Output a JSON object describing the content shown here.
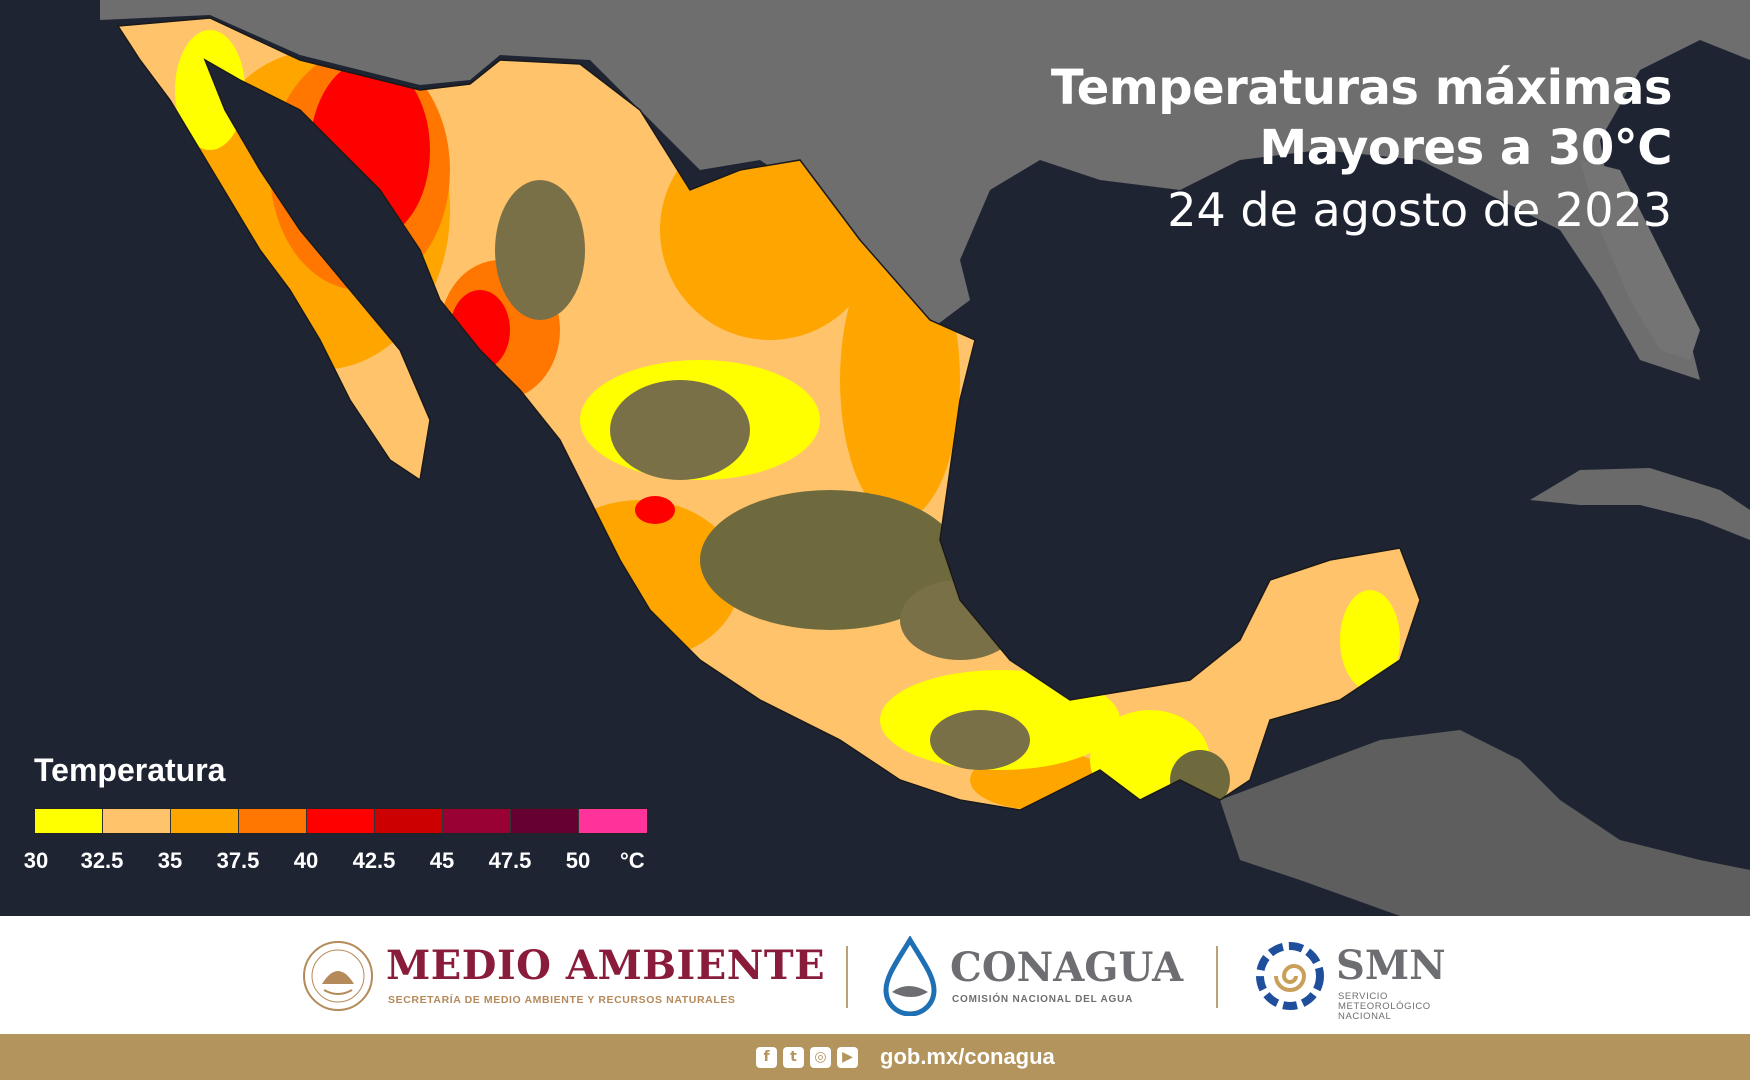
{
  "title": {
    "line1": "Temperaturas máximas",
    "line2": "Mayores a 30°C",
    "date": "24 de agosto de 2023"
  },
  "legend": {
    "title": "Temperatura",
    "unit": "°C",
    "ticks": [
      "30",
      "32.5",
      "35",
      "37.5",
      "40",
      "42.5",
      "45",
      "47.5",
      "50"
    ],
    "colors": [
      "#ffff00",
      "#ffc46b",
      "#ffa500",
      "#ff7700",
      "#ff0000",
      "#cc0000",
      "#990033",
      "#660033",
      "#ff3399"
    ]
  },
  "logos": {
    "semarnat_name": "MEDIO AMBIENTE",
    "semarnat_sub": "SECRETARÍA DE MEDIO AMBIENTE Y RECURSOS NATURALES",
    "conagua_name": "CONAGUA",
    "conagua_sub": "COMISIÓN NACIONAL DEL AGUA",
    "smn_name": "SMN",
    "smn_sub_1": "SERVICIO",
    "smn_sub_2": "METEOROLÓGICO",
    "smn_sub_3": "NACIONAL"
  },
  "footer": {
    "url": "gob.mx/conagua",
    "icons": [
      "facebook-icon",
      "twitter-icon",
      "instagram-icon",
      "youtube-icon"
    ]
  },
  "colors": {
    "ocean": "#1f2433",
    "land_gray": "#6b6b6b",
    "highland": "#7a7048",
    "brand_maroon": "#8a1c3b",
    "brand_gold": "#b3945c"
  }
}
